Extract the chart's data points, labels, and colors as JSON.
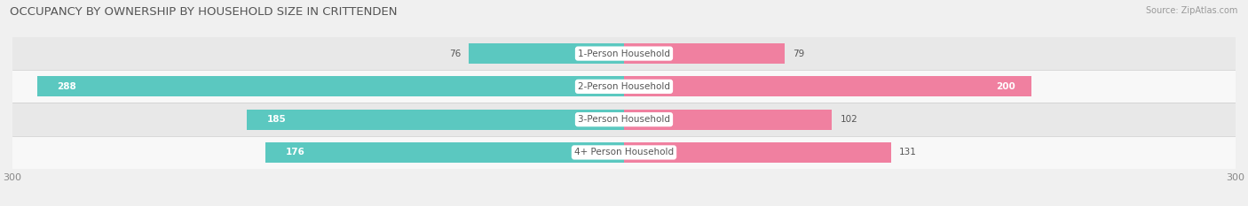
{
  "title": "OCCUPANCY BY OWNERSHIP BY HOUSEHOLD SIZE IN CRITTENDEN",
  "source": "Source: ZipAtlas.com",
  "categories": [
    "1-Person Household",
    "2-Person Household",
    "3-Person Household",
    "4+ Person Household"
  ],
  "owner_values": [
    76,
    288,
    185,
    176
  ],
  "renter_values": [
    79,
    200,
    102,
    131
  ],
  "owner_color": "#5BC8C0",
  "renter_color": "#F080A0",
  "axis_max": 300,
  "row_bg_colors": [
    "#E8E8E8",
    "#F8F8F8",
    "#E8E8E8",
    "#F8F8F8"
  ],
  "title_fontsize": 9.5,
  "label_fontsize": 7.5,
  "tick_fontsize": 8,
  "fig_bg": "#F0F0F0"
}
